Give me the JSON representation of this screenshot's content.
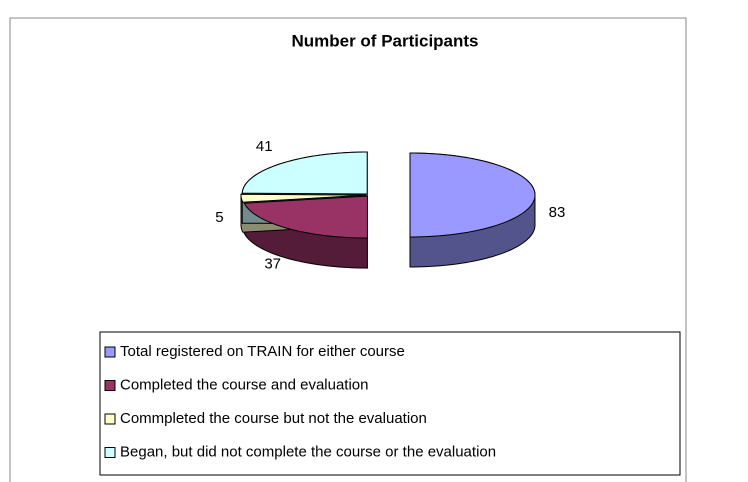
{
  "chart_data": {
    "type": "pie3d",
    "title": "Number of Participants",
    "categories": [
      "Total registered on TRAIN for either course",
      "Completed the course and evaluation",
      "Commpleted the course but not the evaluation",
      "Began, but did not complete the course or the evaluation"
    ],
    "values": [
      83,
      37,
      5,
      41
    ],
    "colors": [
      "#9999ff",
      "#993366",
      "#ffffcc",
      "#ccffff"
    ],
    "legend": "bottom"
  }
}
